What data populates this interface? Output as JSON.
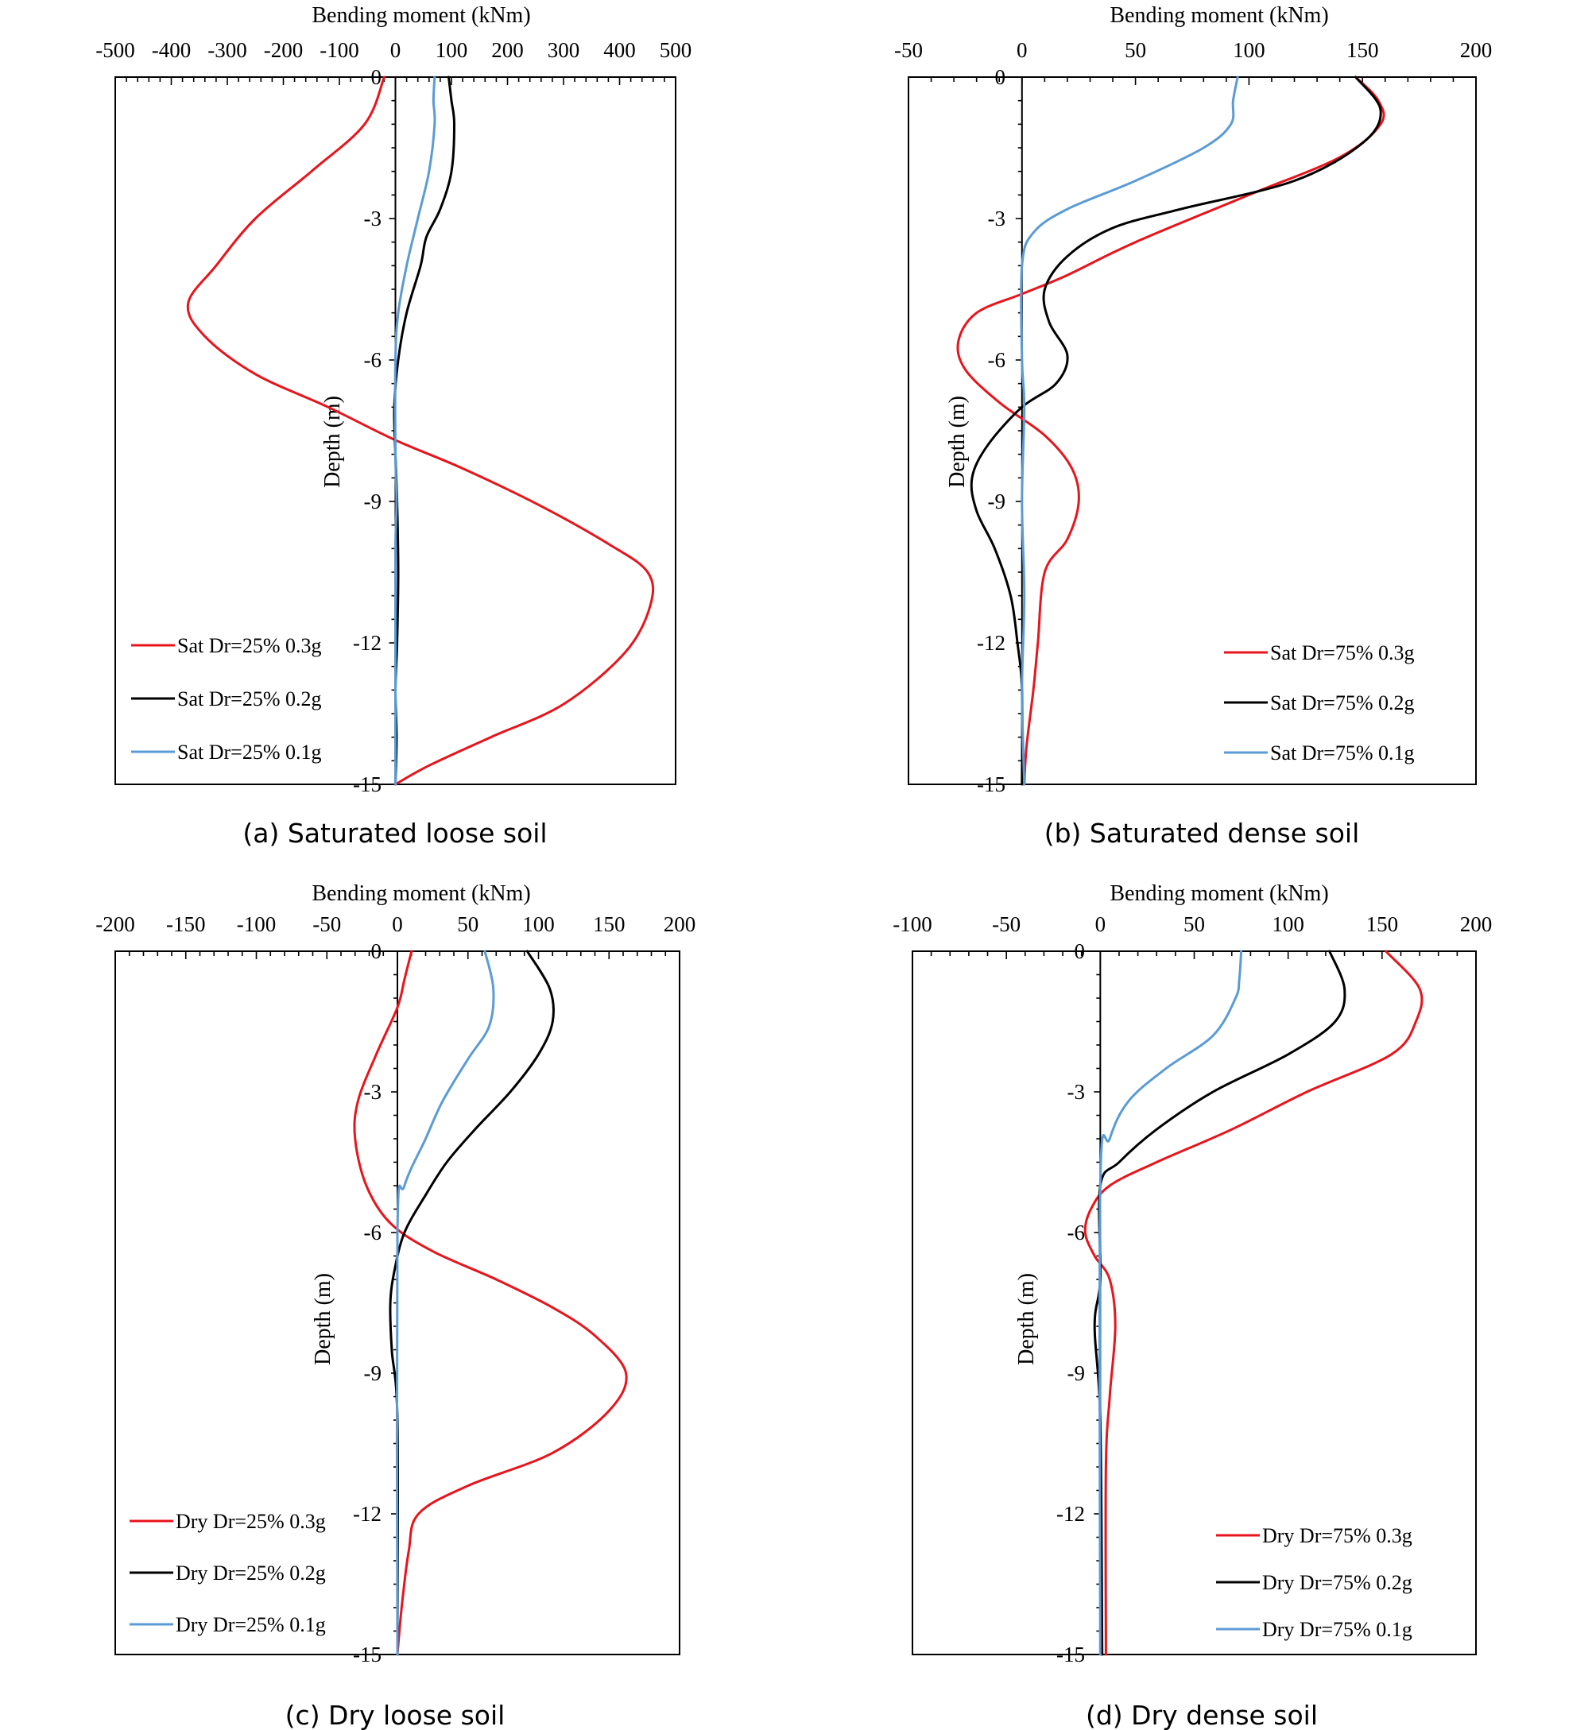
{
  "chart_data": [
    {
      "type": "line",
      "caption": "(a) Saturated loose soil",
      "xlabel": "Bending moment (kNm)",
      "ylabel": "Depth (m)",
      "xlim": [
        -500,
        500
      ],
      "ylim": [
        -15,
        0
      ],
      "x_ticks": [
        -500,
        -400,
        -300,
        -200,
        -100,
        0,
        100,
        200,
        300,
        400,
        500
      ],
      "y_ticks": [
        0,
        -3,
        -6,
        -9,
        -12,
        -15
      ],
      "legend_position": "bottom-left",
      "series": [
        {
          "name": "Sat Dr=25% 0.3g",
          "color": "#e8141c",
          "points": [
            [
              -20,
              0
            ],
            [
              -55,
              -1
            ],
            [
              -150,
              -2
            ],
            [
              -250,
              -3
            ],
            [
              -320,
              -4
            ],
            [
              -370,
              -4.8
            ],
            [
              -340,
              -5.5
            ],
            [
              -250,
              -6.3
            ],
            [
              -120,
              -7
            ],
            [
              0,
              -7.7
            ],
            [
              120,
              -8.3
            ],
            [
              260,
              -9.1
            ],
            [
              380,
              -9.9
            ],
            [
              450,
              -10.5
            ],
            [
              455,
              -11.2
            ],
            [
              410,
              -12.2
            ],
            [
              300,
              -13.3
            ],
            [
              170,
              -14
            ],
            [
              60,
              -14.6
            ],
            [
              0,
              -15
            ]
          ]
        },
        {
          "name": "Sat Dr=25% 0.2g",
          "color": "#000000",
          "points": [
            [
              95,
              0
            ],
            [
              100,
              -0.5
            ],
            [
              105,
              -1
            ],
            [
              100,
              -2
            ],
            [
              80,
              -2.8
            ],
            [
              55,
              -3.4
            ],
            [
              45,
              -4
            ],
            [
              20,
              -5
            ],
            [
              5,
              -6
            ],
            [
              -2,
              -7
            ],
            [
              0,
              -8
            ],
            [
              3,
              -9
            ],
            [
              5,
              -10.5
            ],
            [
              3,
              -12
            ],
            [
              0,
              -13
            ],
            [
              2,
              -14
            ],
            [
              0,
              -15
            ]
          ]
        },
        {
          "name": "Sat Dr=25% 0.1g",
          "color": "#5b9bd5",
          "points": [
            [
              70,
              0
            ],
            [
              68,
              -0.5
            ],
            [
              70,
              -1
            ],
            [
              60,
              -2
            ],
            [
              40,
              -3
            ],
            [
              20,
              -4
            ],
            [
              5,
              -5
            ],
            [
              0,
              -6
            ],
            [
              0,
              -8
            ],
            [
              2,
              -9
            ],
            [
              0,
              -10
            ],
            [
              0,
              -12
            ],
            [
              0,
              -15
            ]
          ]
        }
      ]
    },
    {
      "type": "line",
      "caption": "(b) Saturated dense soil",
      "xlabel": "Bending moment (kNm)",
      "ylabel": "Depth (m)",
      "xlim": [
        -50,
        200
      ],
      "ylim": [
        -15,
        0
      ],
      "x_ticks": [
        -50,
        0,
        50,
        100,
        150,
        200
      ],
      "y_ticks": [
        0,
        -3,
        -6,
        -9,
        -12,
        -15
      ],
      "legend_position": "bottom-right",
      "series": [
        {
          "name": "Sat Dr=75% 0.3g",
          "color": "#e8141c",
          "points": [
            [
              147,
              0
            ],
            [
              157,
              -0.5
            ],
            [
              158,
              -1
            ],
            [
              140,
              -1.7
            ],
            [
              100,
              -2.5
            ],
            [
              50,
              -3.5
            ],
            [
              20,
              -4.2
            ],
            [
              0,
              -4.6
            ],
            [
              -20,
              -5
            ],
            [
              -28,
              -5.6
            ],
            [
              -25,
              -6.2
            ],
            [
              -10,
              -6.9
            ],
            [
              10,
              -7.6
            ],
            [
              22,
              -8.3
            ],
            [
              25,
              -9
            ],
            [
              20,
              -9.8
            ],
            [
              10,
              -10.5
            ],
            [
              7,
              -12
            ],
            [
              5,
              -13
            ],
            [
              2,
              -14.2
            ],
            [
              1,
              -15
            ]
          ]
        },
        {
          "name": "Sat Dr=75% 0.2g",
          "color": "#000000",
          "points": [
            [
              147,
              0
            ],
            [
              158,
              -0.7
            ],
            [
              150,
              -1.4
            ],
            [
              120,
              -2.2
            ],
            [
              70,
              -2.8
            ],
            [
              40,
              -3.2
            ],
            [
              20,
              -3.8
            ],
            [
              10,
              -4.5
            ],
            [
              12,
              -5.2
            ],
            [
              20,
              -5.9
            ],
            [
              15,
              -6.5
            ],
            [
              0,
              -7
            ],
            [
              -15,
              -7.8
            ],
            [
              -22,
              -8.5
            ],
            [
              -20,
              -9.2
            ],
            [
              -12,
              -10
            ],
            [
              -5,
              -11
            ],
            [
              -2,
              -12
            ],
            [
              0,
              -13
            ],
            [
              0,
              -15
            ]
          ]
        },
        {
          "name": "Sat Dr=75% 0.1g",
          "color": "#5b9bd5",
          "points": [
            [
              95,
              0
            ],
            [
              93,
              -0.5
            ],
            [
              92,
              -1
            ],
            [
              80,
              -1.5
            ],
            [
              50,
              -2.2
            ],
            [
              20,
              -2.8
            ],
            [
              5,
              -3.3
            ],
            [
              0,
              -4
            ],
            [
              0,
              -6
            ],
            [
              1,
              -7
            ],
            [
              0,
              -9
            ],
            [
              1,
              -11
            ],
            [
              0,
              -13
            ],
            [
              1,
              -15
            ]
          ]
        }
      ]
    },
    {
      "type": "line",
      "caption": "(c) Dry loose soil",
      "xlabel": "Bending moment (kNm)",
      "ylabel": "Depth (m)",
      "xlim": [
        -200,
        200
      ],
      "ylim": [
        -15,
        0
      ],
      "x_ticks": [
        -200,
        -150,
        -100,
        -50,
        0,
        50,
        100,
        150,
        200
      ],
      "y_ticks": [
        0,
        -3,
        -6,
        -9,
        -12,
        -15
      ],
      "legend_position": "bottom-left",
      "series": [
        {
          "name": "Dry Dr=25% 0.3g",
          "color": "#e8141c",
          "points": [
            [
              10,
              0
            ],
            [
              5,
              -0.6
            ],
            [
              0,
              -1.2
            ],
            [
              -15,
              -2.2
            ],
            [
              -28,
              -3.2
            ],
            [
              -30,
              -4
            ],
            [
              -22,
              -5
            ],
            [
              -5,
              -5.8
            ],
            [
              25,
              -6.4
            ],
            [
              70,
              -7
            ],
            [
              110,
              -7.6
            ],
            [
              140,
              -8.2
            ],
            [
              162,
              -9
            ],
            [
              150,
              -9.8
            ],
            [
              110,
              -10.7
            ],
            [
              50,
              -11.4
            ],
            [
              15,
              -12
            ],
            [
              8,
              -12.8
            ],
            [
              3,
              -14
            ],
            [
              0,
              -15
            ]
          ]
        },
        {
          "name": "Dry Dr=25% 0.2g",
          "color": "#000000",
          "points": [
            [
              92,
              0
            ],
            [
              108,
              -0.8
            ],
            [
              110,
              -1.5
            ],
            [
              100,
              -2.2
            ],
            [
              80,
              -3
            ],
            [
              55,
              -3.8
            ],
            [
              35,
              -4.5
            ],
            [
              20,
              -5.2
            ],
            [
              5,
              -6
            ],
            [
              -2,
              -6.8
            ],
            [
              -5,
              -7.5
            ],
            [
              -4,
              -8.5
            ],
            [
              0,
              -10
            ],
            [
              0,
              -15
            ]
          ]
        },
        {
          "name": "Dry Dr=25% 0.1g",
          "color": "#5b9bd5",
          "points": [
            [
              62,
              0
            ],
            [
              68,
              -0.8
            ],
            [
              65,
              -1.6
            ],
            [
              50,
              -2.3
            ],
            [
              32,
              -3.2
            ],
            [
              20,
              -4
            ],
            [
              5,
              -5
            ],
            [
              0,
              -6
            ],
            [
              0,
              -15
            ]
          ]
        }
      ]
    },
    {
      "type": "line",
      "caption": "(d) Dry dense soil",
      "xlabel": "Bending moment (kNm)",
      "ylabel": "Depth (m)",
      "xlim": [
        -100,
        200
      ],
      "ylim": [
        -15,
        0
      ],
      "x_ticks": [
        -100,
        -50,
        0,
        50,
        100,
        150,
        200
      ],
      "y_ticks": [
        0,
        -3,
        -6,
        -9,
        -12,
        -15
      ],
      "legend_position": "bottom-right",
      "series": [
        {
          "name": "Dry Dr=75% 0.3g",
          "color": "#e8141c",
          "points": [
            [
              152,
              0
            ],
            [
              170,
              -0.8
            ],
            [
              168,
              -1.5
            ],
            [
              155,
              -2.2
            ],
            [
              110,
              -3
            ],
            [
              70,
              -3.8
            ],
            [
              30,
              -4.5
            ],
            [
              5,
              -5
            ],
            [
              -5,
              -5.5
            ],
            [
              -8,
              -6
            ],
            [
              -3,
              -6.5
            ],
            [
              5,
              -7
            ],
            [
              8,
              -8
            ],
            [
              5,
              -9.5
            ],
            [
              3,
              -11
            ],
            [
              3,
              -15
            ]
          ]
        },
        {
          "name": "Dry Dr=75% 0.2g",
          "color": "#000000",
          "points": [
            [
              122,
              0
            ],
            [
              130,
              -0.8
            ],
            [
              125,
              -1.5
            ],
            [
              100,
              -2.2
            ],
            [
              60,
              -3
            ],
            [
              30,
              -3.8
            ],
            [
              10,
              -4.5
            ],
            [
              0,
              -5
            ],
            [
              0,
              -7
            ],
            [
              -3,
              -8
            ],
            [
              0,
              -10
            ],
            [
              1,
              -15
            ]
          ]
        },
        {
          "name": "Dry Dr=75% 0.1g",
          "color": "#5b9bd5",
          "points": [
            [
              75,
              0
            ],
            [
              74,
              -0.6
            ],
            [
              72,
              -1
            ],
            [
              60,
              -1.8
            ],
            [
              35,
              -2.5
            ],
            [
              15,
              -3.2
            ],
            [
              5,
              -4
            ],
            [
              0,
              -5
            ],
            [
              0,
              -15
            ]
          ]
        }
      ]
    }
  ]
}
